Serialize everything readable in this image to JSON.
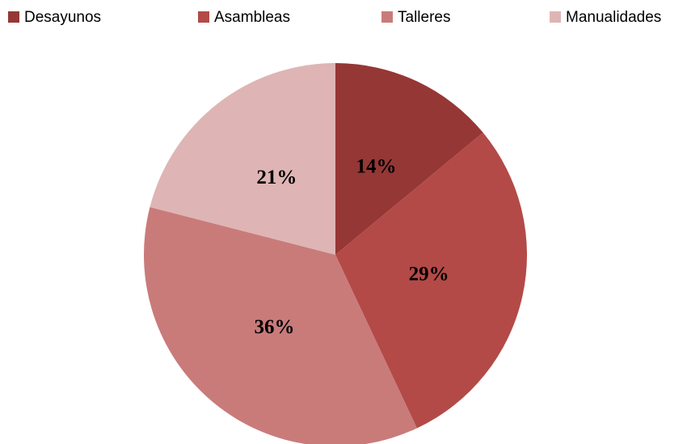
{
  "chart_data": {
    "type": "pie",
    "categories": [
      "Desayunos",
      "Asambleas",
      "Talleres",
      "Manualidades"
    ],
    "values": [
      14,
      29,
      36,
      21
    ],
    "value_labels": [
      "14%",
      "29%",
      "36%",
      "21%"
    ],
    "colors": [
      "#953735",
      "#b34a47",
      "#c97b7a",
      "#deb5b4"
    ],
    "legend": "top"
  }
}
